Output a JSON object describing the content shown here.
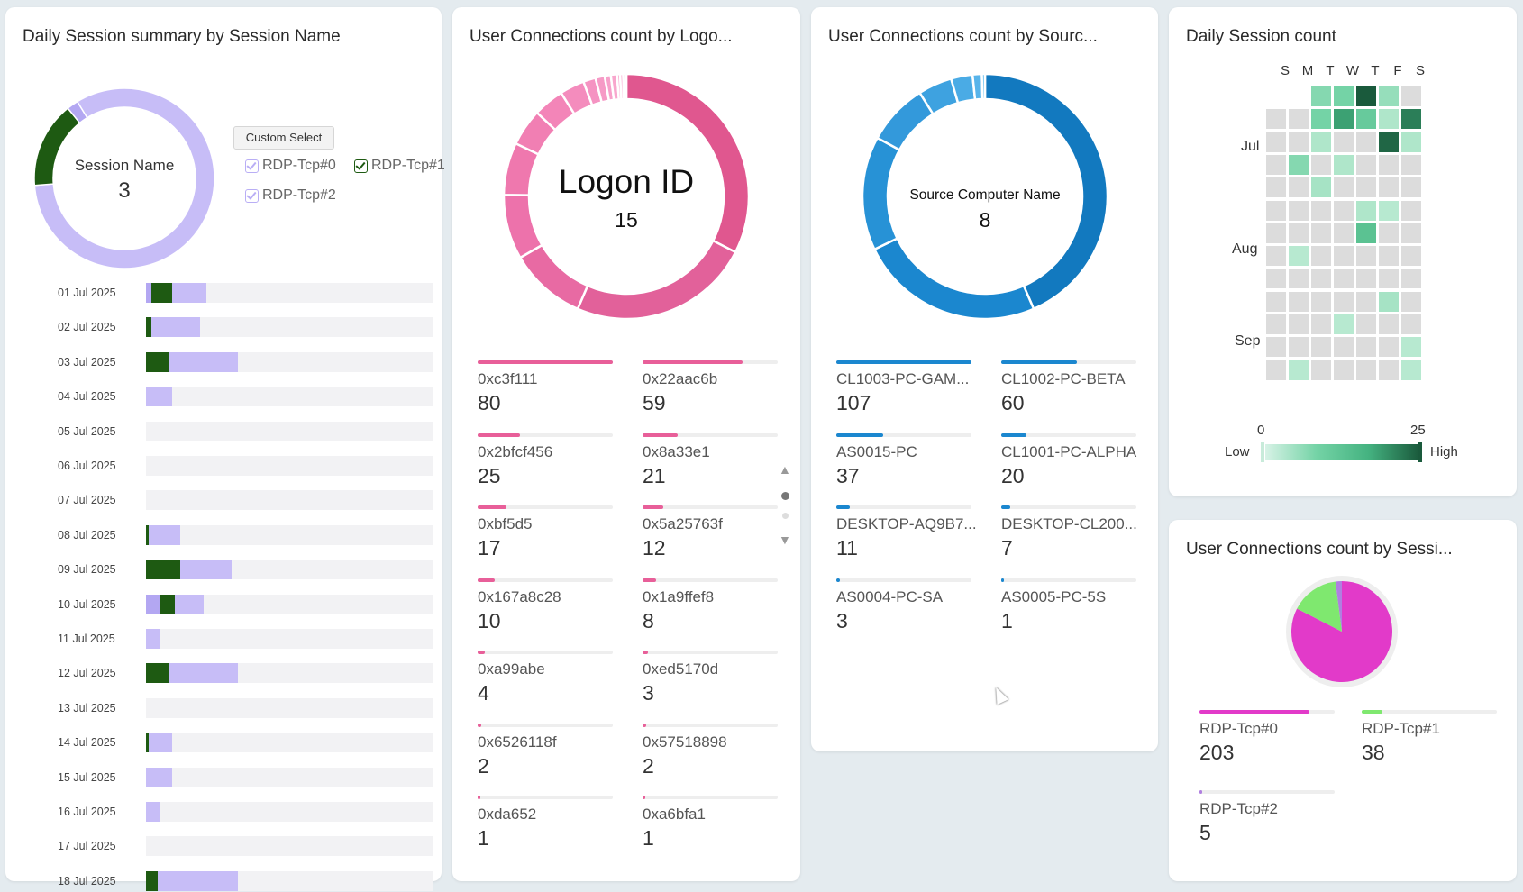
{
  "card1": {
    "title": "Daily Session summary by Session Name",
    "donut_label": "Session Name",
    "donut_value": "3",
    "custom_select": "Custom Select",
    "legend": [
      {
        "label": "RDP-Tcp#0",
        "color": "#b9aef5"
      },
      {
        "label": "RDP-Tcp#1",
        "color": "#1e5a12"
      },
      {
        "label": "RDP-Tcp#2",
        "color": "#b9aef5"
      }
    ],
    "donut_slices": [
      {
        "name": "RDP-Tcp#0",
        "value": 203,
        "color": "#c7bdf7"
      },
      {
        "name": "RDP-Tcp#1",
        "value": 38,
        "color": "#1e5a12"
      },
      {
        "name": "RDP-Tcp#2",
        "value": 5,
        "color": "#b3a7f2"
      }
    ],
    "rows": [
      {
        "date": "01 Jul 2025",
        "s2": 2,
        "s1": 7,
        "s0": 12
      },
      {
        "date": "02 Jul 2025",
        "s2": 0,
        "s1": 2,
        "s0": 17
      },
      {
        "date": "03 Jul 2025",
        "s2": 0,
        "s1": 8,
        "s0": 24
      },
      {
        "date": "04 Jul 2025",
        "s2": 0,
        "s1": 0,
        "s0": 9
      },
      {
        "date": "05 Jul 2025",
        "s2": 0,
        "s1": 0,
        "s0": 0
      },
      {
        "date": "06 Jul 2025",
        "s2": 0,
        "s1": 0,
        "s0": 0
      },
      {
        "date": "07 Jul 2025",
        "s2": 0,
        "s1": 0,
        "s0": 0
      },
      {
        "date": "08 Jul 2025",
        "s2": 0,
        "s1": 1,
        "s0": 11
      },
      {
        "date": "09 Jul 2025",
        "s2": 0,
        "s1": 12,
        "s0": 18
      },
      {
        "date": "10 Jul 2025",
        "s2": 5,
        "s1": 5,
        "s0": 10
      },
      {
        "date": "11 Jul 2025",
        "s2": 0,
        "s1": 0,
        "s0": 5
      },
      {
        "date": "12 Jul 2025",
        "s2": 0,
        "s1": 8,
        "s0": 24
      },
      {
        "date": "13 Jul 2025",
        "s2": 0,
        "s1": 0,
        "s0": 0
      },
      {
        "date": "14 Jul 2025",
        "s2": 0,
        "s1": 1,
        "s0": 8
      },
      {
        "date": "15 Jul 2025",
        "s2": 0,
        "s1": 0,
        "s0": 9
      },
      {
        "date": "16 Jul 2025",
        "s2": 0,
        "s1": 0,
        "s0": 5
      },
      {
        "date": "17 Jul 2025",
        "s2": 0,
        "s1": 0,
        "s0": 0
      },
      {
        "date": "18 Jul 2025",
        "s2": 0,
        "s1": 4,
        "s0": 28
      }
    ],
    "max_value": 100
  },
  "card2": {
    "title": "User Connections count by Logo...",
    "donut_label": "Logon ID",
    "donut_value": "15",
    "color": "#e85f99",
    "items": [
      {
        "label": "0xc3f111",
        "value": 80
      },
      {
        "label": "0x22aac6b",
        "value": 59
      },
      {
        "label": "0x2bfcf456",
        "value": 25
      },
      {
        "label": "0x8a33e1",
        "value": 21
      },
      {
        "label": "0xbf5d5",
        "value": 17
      },
      {
        "label": "0x5a25763f",
        "value": 12
      },
      {
        "label": "0x167a8c28",
        "value": 10
      },
      {
        "label": "0x1a9ffef8",
        "value": 8
      },
      {
        "label": "0xa99abe",
        "value": 4
      },
      {
        "label": "0xed5170d",
        "value": 3
      },
      {
        "label": "0x6526118f",
        "value": 2
      },
      {
        "label": "0x57518898",
        "value": 2
      },
      {
        "label": "0xda652",
        "value": 1
      },
      {
        "label": "0xa6bfa1",
        "value": 1
      }
    ],
    "donut_values": [
      80,
      59,
      25,
      21,
      17,
      12,
      10,
      8,
      4,
      3,
      2,
      2,
      1,
      1,
      1
    ]
  },
  "card3": {
    "title": "User Connections count by Sourc...",
    "donut_label": "Source Computer Name",
    "donut_value": "8",
    "color": "#1b87cf",
    "items": [
      {
        "label": "CL1003-PC-GAM...",
        "value": 107
      },
      {
        "label": "CL1002-PC-BETA",
        "value": 60
      },
      {
        "label": "AS0015-PC",
        "value": 37
      },
      {
        "label": "CL1001-PC-ALPHA",
        "value": 20
      },
      {
        "label": "DESKTOP-AQ9B7...",
        "value": 11
      },
      {
        "label": "DESKTOP-CL200...",
        "value": 7
      },
      {
        "label": "AS0004-PC-SA",
        "value": 3
      },
      {
        "label": "AS0005-PC-5S",
        "value": 1
      }
    ]
  },
  "card4": {
    "title": "Daily Session count",
    "days": [
      "S",
      "M",
      "T",
      "W",
      "T",
      "F",
      "S"
    ],
    "months": [
      "Jul",
      "Aug",
      "Sep"
    ],
    "scale_min": "0",
    "scale_max": "25",
    "low_label": "Low",
    "high_label": "High",
    "weeks": [
      [
        null,
        null,
        8,
        10,
        25,
        6,
        0
      ],
      [
        0,
        0,
        10,
        19,
        12,
        3,
        22
      ],
      [
        0,
        0,
        3,
        0,
        0,
        24,
        3
      ],
      [
        0,
        8,
        0,
        3,
        0,
        0,
        0
      ],
      [
        0,
        0,
        4,
        0,
        0,
        0,
        0
      ],
      [
        0,
        0,
        0,
        0,
        3,
        2,
        0
      ],
      [
        0,
        0,
        0,
        0,
        14,
        0,
        0
      ],
      [
        0,
        2,
        0,
        0,
        0,
        0,
        0
      ],
      [
        0,
        0,
        0,
        0,
        0,
        0,
        0
      ],
      [
        0,
        0,
        0,
        0,
        0,
        4,
        0
      ],
      [
        0,
        0,
        0,
        2,
        0,
        0,
        0
      ],
      [
        0,
        0,
        0,
        0,
        0,
        0,
        2
      ],
      [
        0,
        2,
        0,
        0,
        0,
        0,
        2
      ]
    ]
  },
  "card5": {
    "title": "User Connections count by Sessi...",
    "items": [
      {
        "label": "RDP-Tcp#0",
        "value": 203,
        "color": "#e23ac9"
      },
      {
        "label": "RDP-Tcp#1",
        "value": 38,
        "color": "#7fe86f"
      },
      {
        "label": "RDP-Tcp#2",
        "value": 5,
        "color": "#b07fe0"
      }
    ]
  }
}
